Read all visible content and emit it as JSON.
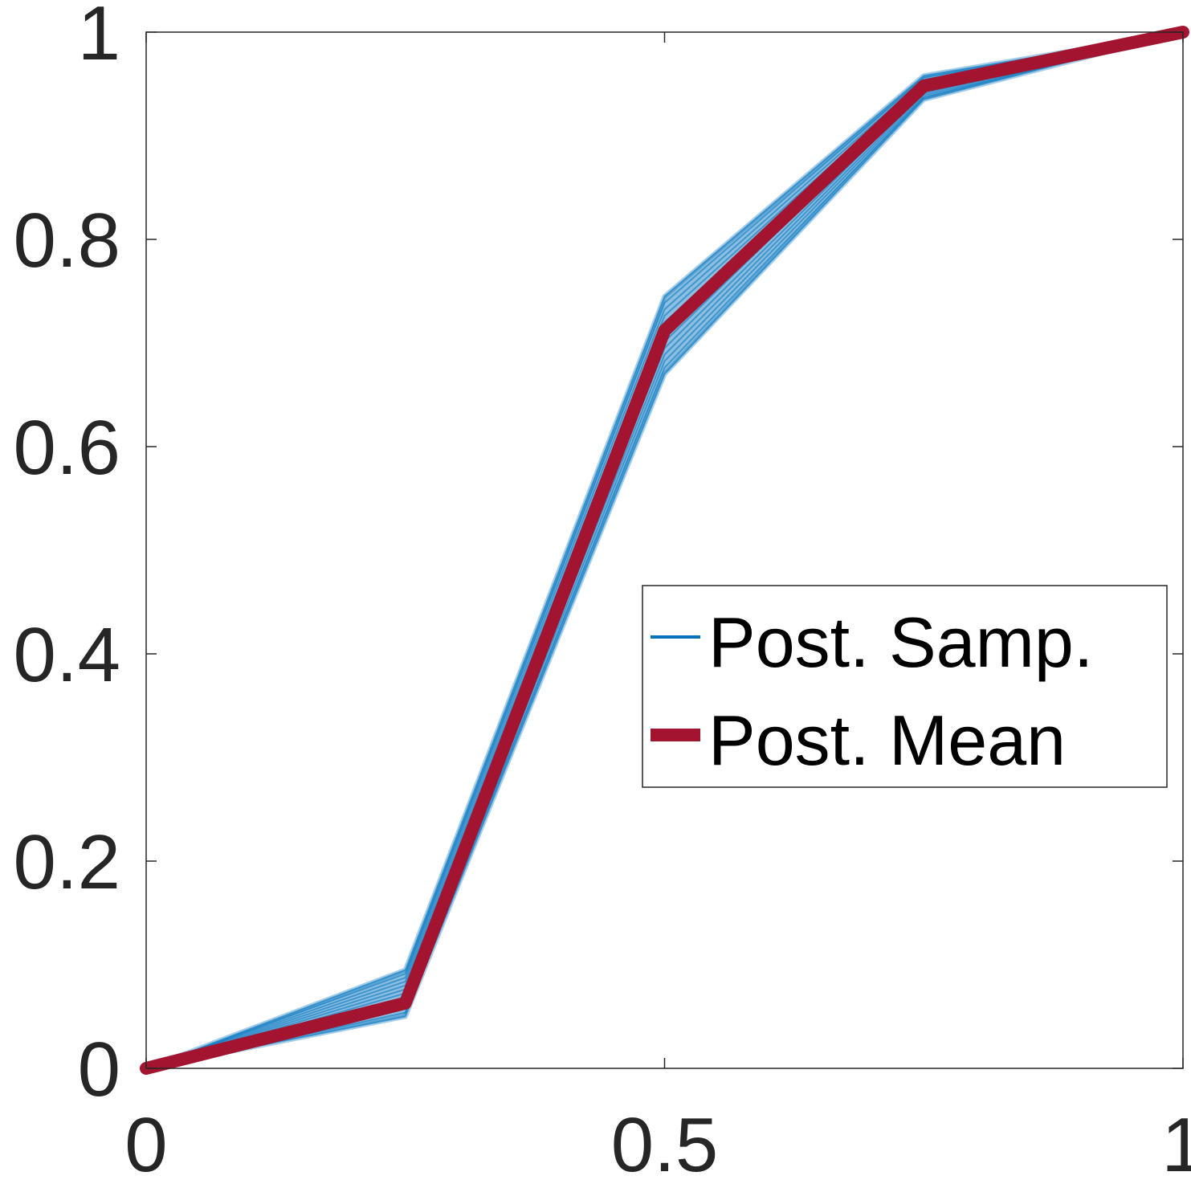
{
  "chart_data": {
    "type": "line",
    "title": "",
    "xlabel": "",
    "ylabel": "",
    "xlim": [
      0,
      1
    ],
    "ylim": [
      0,
      1
    ],
    "xticks": [
      "0",
      "0.5",
      "1"
    ],
    "yticks": [
      "0",
      "0.2",
      "0.4",
      "0.6",
      "0.8",
      "1"
    ],
    "grid": false,
    "legend_position": "center-right",
    "x": [
      0,
      0.25,
      0.5,
      0.75,
      1
    ],
    "series": [
      {
        "name": "Post. Samp.",
        "color": "#0072BD",
        "band_upper": [
          0,
          0.095,
          0.745,
          0.958,
          1
        ],
        "band_lower": [
          0,
          0.05,
          0.67,
          0.935,
          1
        ]
      },
      {
        "name": "Post. Mean",
        "color": "#A2142F",
        "values": [
          0,
          0.063,
          0.712,
          0.948,
          1
        ]
      }
    ]
  }
}
